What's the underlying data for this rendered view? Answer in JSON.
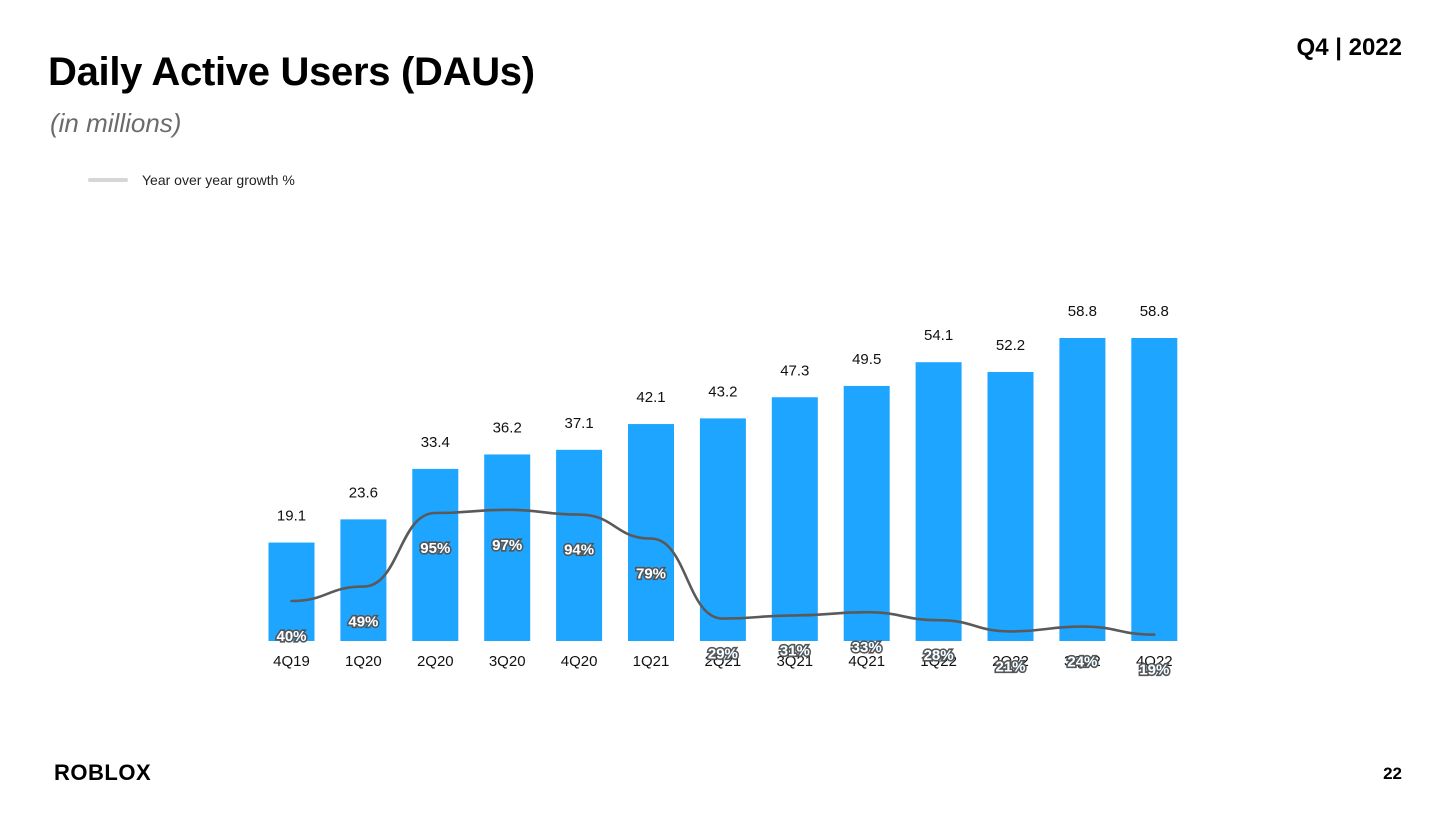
{
  "slide": {
    "title": "Daily Active Users (DAUs)",
    "subtitle": "(in millions)",
    "period": "Q4 | 2022",
    "page_number": "22",
    "logo_text": "ROBLOX"
  },
  "legend": {
    "label": "Year over year growth %"
  },
  "colors": {
    "bar": "#1ea5ff",
    "line": "#5a5a5a",
    "legend_swatch": "#d6d6d6"
  },
  "chart_data": {
    "type": "bar",
    "title": "Daily Active Users (DAUs)",
    "subtitle": "(in millions)",
    "categories": [
      "4Q19",
      "1Q20",
      "2Q20",
      "3Q20",
      "4Q20",
      "1Q21",
      "2Q21",
      "3Q21",
      "4Q21",
      "1Q22",
      "2Q22",
      "3Q22",
      "4Q22"
    ],
    "series": [
      {
        "type": "bar",
        "values": [
          19.1,
          23.6,
          33.4,
          36.2,
          37.1,
          42.1,
          43.2,
          47.3,
          49.5,
          54.1,
          52.2,
          58.8,
          58.8
        ],
        "labels": [
          "19.1",
          "23.6",
          "33.4",
          "36.2",
          "37.1",
          "42.1",
          "43.2",
          "47.3",
          "49.5",
          "54.1",
          "52.2",
          "58.8",
          "58.8"
        ]
      },
      {
        "name": "Year over year growth %",
        "type": "line",
        "values": [
          40,
          49,
          95,
          97,
          94,
          79,
          29,
          31,
          33,
          28,
          21,
          24,
          19
        ],
        "labels": [
          "40%",
          "49%",
          "95%",
          "97%",
          "94%",
          "79%",
          "29%",
          "31%",
          "33%",
          "28%",
          "21%",
          "24%",
          "19%"
        ]
      }
    ],
    "xlabel": "",
    "ylabel": "",
    "grid": false,
    "legend_position": "top-left"
  }
}
